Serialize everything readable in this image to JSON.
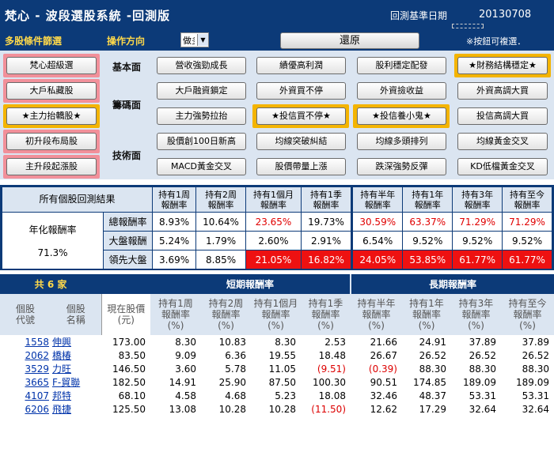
{
  "header": {
    "title": "梵心 - 波段選股系統 -回測版",
    "date_label": "回測基準日期",
    "date_value": "20130708"
  },
  "toolbar": {
    "multi_filter_label": "多股條件篩選",
    "direction_label": "操作方向",
    "direction_value": "做多",
    "restore_label": "還原",
    "hint": "※按鈕可複選．"
  },
  "filter": {
    "left": [
      "梵心超級選",
      "大戶私藏股",
      "★主力抬轎股★",
      "初升段布局股",
      "主升段起漲股"
    ],
    "categories": {
      "basic": "基本面",
      "chips": "籌碼面",
      "technical": "技術面"
    },
    "grid": [
      [
        "營收強勁成長",
        "績優高利潤",
        "股利穩定配發",
        "★財務結構穩定★"
      ],
      [
        "大戶融資鎖定",
        "外資買不停",
        "外資撿收益",
        "外資高調大買"
      ],
      [
        "主力強勢拉抬",
        "★投信買不停★",
        "★投信養小鬼★",
        "投信高調大買"
      ],
      [
        "股價創100日新高",
        "均線突破糾結",
        "均線多頭排列",
        "均線黃金交叉"
      ],
      [
        "MACD黃金交叉",
        "股價帶量上漲",
        "跌深強勢反彈",
        "KD低檔黃金交叉"
      ]
    ]
  },
  "summary": {
    "title": "所有個股回測結果",
    "annual_label": "年化報酬率",
    "annual_value": "71.3%",
    "headers": [
      "持有1周\n報酬率",
      "持有2周\n報酬率",
      "持有1個月\n報酬率",
      "持有1季\n報酬率",
      "持有半年\n報酬率",
      "持有1年\n報酬率",
      "持有3年\n報酬率",
      "持有至今\n報酬率"
    ],
    "rows": [
      {
        "label": "總報酬率",
        "values": [
          "8.93%",
          "10.64%",
          "23.65%",
          "19.73%",
          "30.59%",
          "63.37%",
          "71.29%",
          "71.29%"
        ]
      },
      {
        "label": "大盤報酬",
        "values": [
          "5.24%",
          "1.79%",
          "2.60%",
          "2.91%",
          "6.54%",
          "9.52%",
          "9.52%",
          "9.52%"
        ]
      },
      {
        "label": "領先大盤",
        "values": [
          "3.69%",
          "8.85%",
          "21.05%",
          "16.82%",
          "24.05%",
          "53.85%",
          "61.77%",
          "61.77%"
        ]
      }
    ]
  },
  "stocks": {
    "count_label": "共 6 家",
    "short_label": "短期報酬率",
    "long_label": "長期報酬率",
    "col_headers": [
      "個股\n代號",
      "個股\n名稱",
      "現在股價\n(元)",
      "持有1周\n報酬率\n(%)",
      "持有2周\n報酬率\n(%)",
      "持有1個月\n報酬率\n(%)",
      "持有1季\n報酬率\n(%)",
      "持有半年\n報酬率\n(%)",
      "持有1年\n報酬率\n(%)",
      "持有3年\n報酬率\n(%)",
      "持有至今\n報酬率\n(%)"
    ],
    "rows": [
      {
        "code": "1558",
        "name": "伸興",
        "vals": [
          "173.00",
          "8.30",
          "10.83",
          "8.30",
          "2.53",
          "21.66",
          "24.91",
          "37.89",
          "37.89"
        ]
      },
      {
        "code": "2062",
        "name": "橋椿",
        "vals": [
          "83.50",
          "9.09",
          "6.36",
          "19.55",
          "18.48",
          "26.67",
          "26.52",
          "26.52",
          "26.52"
        ]
      },
      {
        "code": "3529",
        "name": "力旺",
        "vals": [
          "146.50",
          "3.60",
          "5.78",
          "11.05",
          "(9.51)",
          "(0.39)",
          "88.30",
          "88.30",
          "88.30"
        ]
      },
      {
        "code": "3665",
        "name": "F-貿聯",
        "vals": [
          "182.50",
          "14.91",
          "25.90",
          "87.50",
          "100.30",
          "90.51",
          "174.85",
          "189.09",
          "189.09"
        ]
      },
      {
        "code": "4107",
        "name": "邦特",
        "vals": [
          "68.10",
          "4.58",
          "4.68",
          "5.23",
          "18.08",
          "32.46",
          "48.37",
          "53.31",
          "53.31"
        ]
      },
      {
        "code": "6206",
        "name": "飛捷",
        "vals": [
          "125.50",
          "13.08",
          "10.28",
          "10.28",
          "(11.50)",
          "12.62",
          "17.29",
          "32.64",
          "32.64"
        ]
      }
    ]
  },
  "colors": {
    "navy": "#0c3a78",
    "gold": "#ffd94a",
    "light": "#dbe5f1",
    "red": "#ee1111",
    "pink": "#f2909a",
    "orange": "#f4b400"
  }
}
